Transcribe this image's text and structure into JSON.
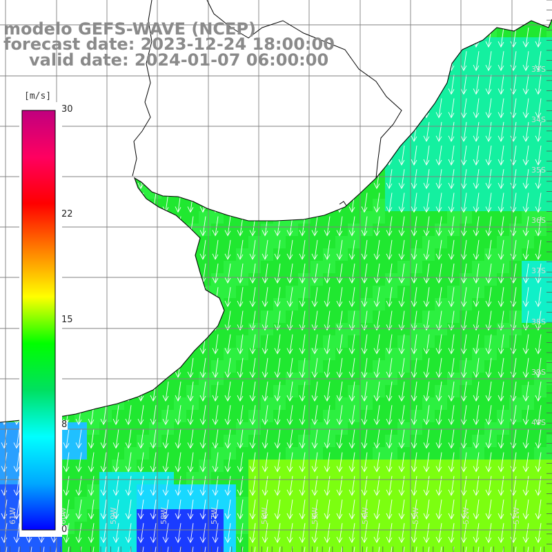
{
  "header": {
    "line1": "modelo GEFS-WAVE (NCEP)",
    "line2": "forecast date: 2023-12-24 18:00:00",
    "line3": "valid date: 2024-01-07 06:00:00"
  },
  "colorbar": {
    "unit": "[m/s]",
    "min": 0,
    "max": 30,
    "ticks": [
      "30",
      "22",
      "15",
      "8",
      "0"
    ],
    "stops": [
      "#0000ff",
      "#00a8ff",
      "#00ffff",
      "#00e060",
      "#00ff00",
      "#ffff00",
      "#ff8000",
      "#ff0000",
      "#ff0060",
      "#c0007f"
    ]
  },
  "grid": {
    "lon_labels": [
      "61W",
      "60W",
      "59W",
      "58W",
      "57W",
      "56W",
      "55W",
      "54W",
      "53W",
      "52W",
      "51W"
    ],
    "lat_labels": [
      "33S",
      "34S",
      "35S",
      "36S",
      "37S",
      "38S",
      "39S",
      "40S"
    ]
  },
  "map": {
    "variable": "wind speed",
    "units": "m/s",
    "arrows": "white",
    "land_color": "#ffffff",
    "coast_color": "#000000",
    "grid_line_color": "#808080"
  }
}
